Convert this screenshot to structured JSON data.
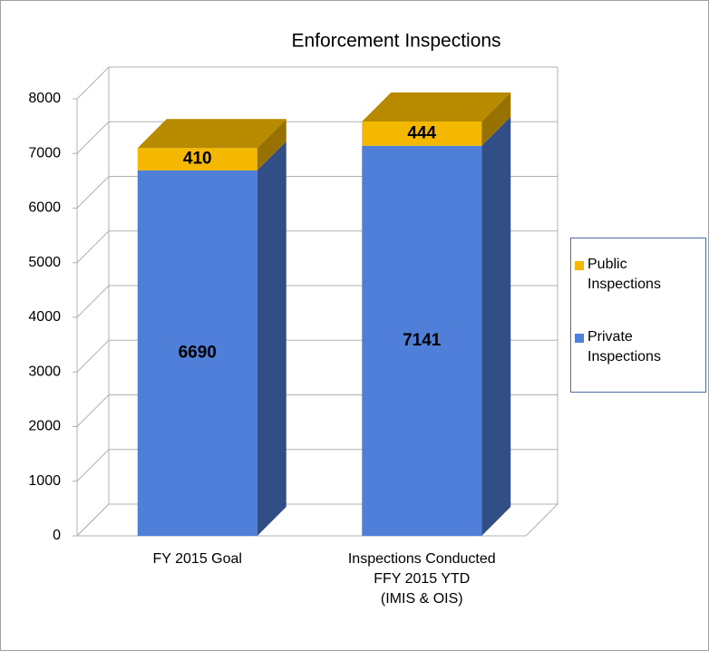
{
  "chart_data": {
    "type": "bar3d_stacked",
    "title": "Enforcement Inspections",
    "categories": [
      [
        "FY 2015 Goal"
      ],
      [
        "Inspections Conducted",
        "FFY 2015 YTD",
        "(IMIS & OIS)"
      ]
    ],
    "series": [
      {
        "name": "Private Inspections",
        "color": "#4f7fd8",
        "values": [
          6690,
          7141
        ]
      },
      {
        "name": "Public Inspections",
        "color": "#f5b800",
        "values": [
          410,
          444
        ]
      }
    ],
    "ylim": [
      0,
      8000
    ],
    "yticks": [
      0,
      1000,
      2000,
      3000,
      4000,
      5000,
      6000,
      7000,
      8000
    ],
    "grid": true,
    "legend": "right"
  }
}
